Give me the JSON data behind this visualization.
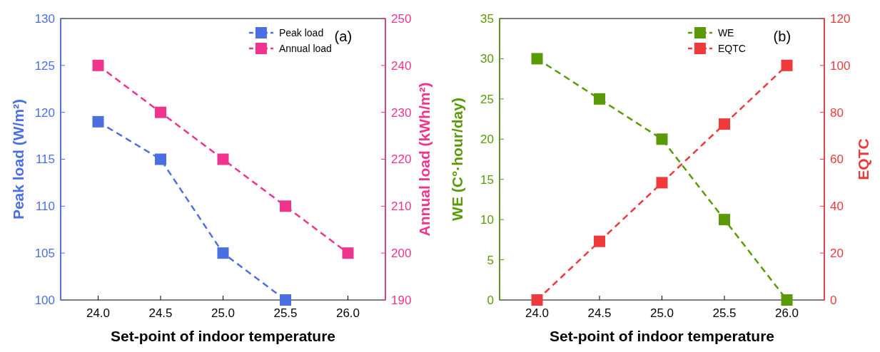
{
  "chart_data": [
    {
      "type": "line",
      "xlabel": "Set-point of indoor temperature",
      "ylabel": "Peak load (W/m²)",
      "y2label": "Annual load (kWh/m²)",
      "annotations": [
        "(a)"
      ],
      "x": [
        24,
        24.5,
        25,
        25.5,
        26
      ],
      "series": [
        {
          "name": "Peak load",
          "color": "#4a6fe3",
          "values": [
            119,
            115,
            105,
            100,
            null
          ]
        },
        {
          "name": "Annual load",
          "color": "#f0338c",
          "axis": "y2",
          "values": [
            240,
            230,
            220,
            210,
            200
          ]
        }
      ],
      "xlim": [
        23.7,
        26.3
      ],
      "xticks": [
        {
          "value": 24,
          "label": "24.0"
        },
        {
          "value": 24.5,
          "label": "24.5"
        },
        {
          "value": 25,
          "label": "25.0"
        },
        {
          "value": 25.5,
          "label": "25.5"
        },
        {
          "value": 26,
          "label": "26.0"
        }
      ],
      "ylim": [
        100,
        130
      ],
      "yticks": [
        100,
        105,
        110,
        115,
        120,
        125,
        130
      ],
      "y2lim": [
        190,
        250
      ],
      "y2ticks": [
        190,
        200,
        210,
        220,
        230,
        240,
        250
      ],
      "legend": "top right",
      "marker": "square",
      "line_style": "dashed",
      "grid": false
    },
    {
      "type": "line",
      "xlabel": "Set-point of indoor temperature",
      "ylabel": "WE (C°·hour/day)",
      "y2label": "EQTC",
      "annotations": [
        "(b)"
      ],
      "x": [
        24,
        24.5,
        25,
        25.5,
        26
      ],
      "series": [
        {
          "name": "WE",
          "color": "#5a9a08",
          "values": [
            30,
            25,
            20,
            10,
            0
          ]
        },
        {
          "name": "EQTC",
          "color": "#f0393a",
          "axis": "y2",
          "values": [
            0,
            25,
            50,
            75,
            100
          ]
        }
      ],
      "xlim": [
        23.7,
        26.3
      ],
      "xticks": [
        {
          "value": 24,
          "label": "24.0"
        },
        {
          "value": 24.5,
          "label": "24.5"
        },
        {
          "value": 25,
          "label": "25.0"
        },
        {
          "value": 25.5,
          "label": "25.5"
        },
        {
          "value": 26,
          "label": "26.0"
        }
      ],
      "ylim": [
        0,
        35
      ],
      "yticks": [
        0,
        5,
        10,
        15,
        20,
        25,
        30,
        35
      ],
      "y2lim": [
        0,
        120
      ],
      "y2ticks": [
        0,
        20,
        40,
        60,
        80,
        100,
        120
      ],
      "legend": "top right",
      "marker": "square",
      "line_style": "dashed",
      "grid": false
    }
  ]
}
